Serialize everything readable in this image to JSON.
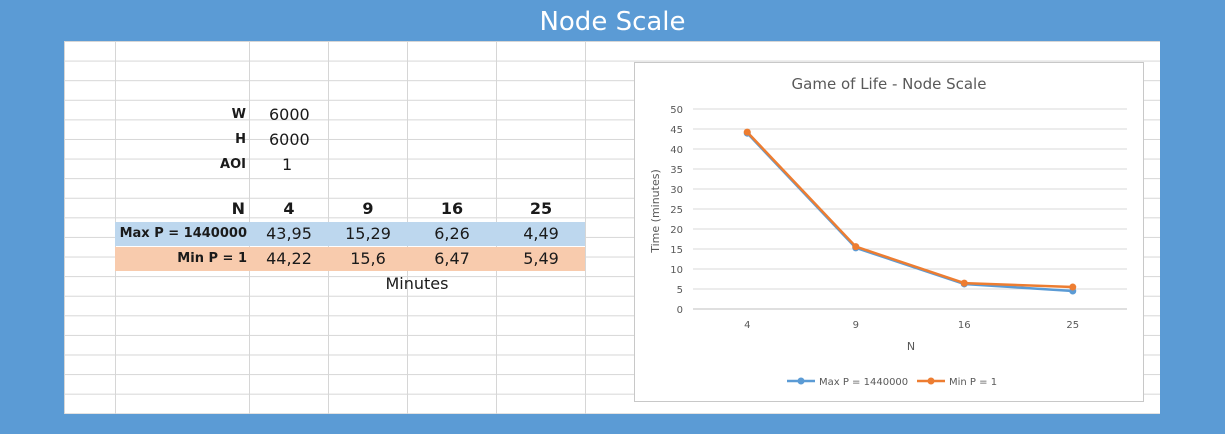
{
  "slide_title": "Node Scale",
  "params": [
    {
      "label": "W",
      "value": "6000"
    },
    {
      "label": "H",
      "value": "6000"
    },
    {
      "label": "AOI",
      "value": "1"
    }
  ],
  "table": {
    "n_label": "N",
    "columns": [
      "4",
      "9",
      "16",
      "25"
    ],
    "rows": [
      {
        "label": "Max P = 1440000",
        "values": [
          "43,95",
          "15,29",
          "6,26",
          "4,49"
        ],
        "color": "#bdd7ee"
      },
      {
        "label": "Min P = 1",
        "values": [
          "44,22",
          "15,6",
          "6,47",
          "5,49"
        ],
        "color": "#f8cbad"
      }
    ],
    "unit_note": "Minutes"
  },
  "chart_data": {
    "type": "line",
    "title": "Game of Life - Node Scale",
    "xlabel": "N",
    "ylabel": "Time (minutes)",
    "categories": [
      "4",
      "9",
      "16",
      "25"
    ],
    "ylim": [
      0,
      50
    ],
    "yticks": [
      "0",
      "5",
      "10",
      "15",
      "20",
      "25",
      "30",
      "35",
      "40",
      "45",
      "50"
    ],
    "grid": true,
    "legend_position": "bottom",
    "series": [
      {
        "name": "Max P = 1440000",
        "values": [
          43.95,
          15.29,
          6.26,
          4.49
        ],
        "color": "#5b9bd5"
      },
      {
        "name": "Min P = 1",
        "values": [
          44.22,
          15.6,
          6.47,
          5.49
        ],
        "color": "#ed7d31"
      }
    ]
  }
}
